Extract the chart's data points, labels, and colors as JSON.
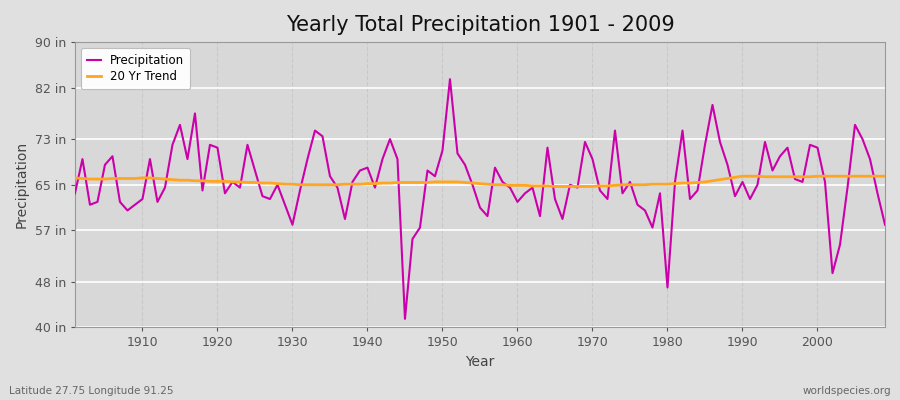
{
  "title": "Yearly Total Precipitation 1901 - 2009",
  "xlabel": "Year",
  "ylabel": "Precipitation",
  "bottom_left_label": "Latitude 27.75 Longitude 91.25",
  "bottom_right_label": "worldspecies.org",
  "years": [
    1901,
    1902,
    1903,
    1904,
    1905,
    1906,
    1907,
    1908,
    1909,
    1910,
    1911,
    1912,
    1913,
    1914,
    1915,
    1916,
    1917,
    1918,
    1919,
    1920,
    1921,
    1922,
    1923,
    1924,
    1925,
    1926,
    1927,
    1928,
    1929,
    1930,
    1931,
    1932,
    1933,
    1934,
    1935,
    1936,
    1937,
    1938,
    1939,
    1940,
    1941,
    1942,
    1943,
    1944,
    1945,
    1946,
    1947,
    1948,
    1949,
    1950,
    1951,
    1952,
    1953,
    1954,
    1955,
    1956,
    1957,
    1958,
    1959,
    1960,
    1961,
    1962,
    1963,
    1964,
    1965,
    1966,
    1967,
    1968,
    1969,
    1970,
    1971,
    1972,
    1973,
    1974,
    1975,
    1976,
    1977,
    1978,
    1979,
    1980,
    1981,
    1982,
    1983,
    1984,
    1985,
    1986,
    1987,
    1988,
    1989,
    1990,
    1991,
    1992,
    1993,
    1994,
    1995,
    1996,
    1997,
    1998,
    1999,
    2000,
    2001,
    2002,
    2003,
    2004,
    2005,
    2006,
    2007,
    2008,
    2009
  ],
  "precipitation": [
    63.5,
    69.5,
    61.5,
    62.0,
    68.5,
    70.0,
    62.0,
    60.5,
    61.5,
    62.5,
    69.5,
    62.0,
    64.5,
    72.0,
    75.5,
    69.5,
    77.5,
    64.0,
    72.0,
    71.5,
    63.5,
    65.5,
    64.5,
    72.0,
    67.5,
    63.0,
    62.5,
    65.0,
    61.5,
    58.0,
    64.0,
    69.5,
    74.5,
    73.5,
    66.5,
    64.5,
    59.0,
    65.5,
    67.5,
    68.0,
    64.5,
    69.5,
    73.0,
    69.5,
    41.5,
    55.5,
    57.5,
    67.5,
    66.5,
    71.0,
    83.5,
    70.5,
    68.5,
    65.0,
    61.0,
    59.5,
    68.0,
    65.5,
    64.5,
    62.0,
    63.5,
    64.5,
    59.5,
    71.5,
    62.5,
    59.0,
    65.0,
    64.5,
    72.5,
    69.5,
    64.0,
    62.5,
    74.5,
    63.5,
    65.5,
    61.5,
    60.5,
    57.5,
    63.5,
    47.0,
    65.5,
    74.5,
    62.5,
    64.0,
    72.0,
    79.0,
    72.5,
    68.5,
    63.0,
    65.5,
    62.5,
    65.0,
    72.5,
    67.5,
    70.0,
    71.5,
    66.0,
    65.5,
    72.0,
    71.5,
    65.5,
    49.5,
    54.5,
    64.5,
    75.5,
    73.0,
    69.5,
    63.5,
    58.0
  ],
  "trend": [
    66.2,
    66.1,
    66.0,
    66.0,
    66.0,
    66.1,
    66.1,
    66.1,
    66.1,
    66.2,
    66.2,
    66.1,
    66.0,
    65.9,
    65.8,
    65.8,
    65.7,
    65.7,
    65.6,
    65.6,
    65.6,
    65.5,
    65.5,
    65.4,
    65.4,
    65.3,
    65.3,
    65.2,
    65.1,
    65.1,
    65.0,
    65.0,
    65.0,
    65.0,
    65.0,
    65.0,
    65.1,
    65.1,
    65.1,
    65.2,
    65.2,
    65.3,
    65.3,
    65.4,
    65.4,
    65.4,
    65.4,
    65.4,
    65.5,
    65.5,
    65.5,
    65.5,
    65.4,
    65.3,
    65.2,
    65.1,
    65.0,
    65.0,
    64.9,
    64.9,
    64.9,
    64.8,
    64.8,
    64.8,
    64.7,
    64.7,
    64.7,
    64.7,
    64.7,
    64.7,
    64.8,
    64.8,
    64.9,
    65.0,
    65.0,
    65.0,
    65.0,
    65.1,
    65.1,
    65.1,
    65.2,
    65.3,
    65.3,
    65.4,
    65.5,
    65.7,
    65.9,
    66.1,
    66.3,
    66.5,
    66.5,
    66.5,
    66.4,
    66.4,
    66.4,
    66.4,
    66.4,
    66.4,
    66.4,
    66.5,
    66.5,
    66.5,
    66.5,
    66.5,
    66.5,
    66.5,
    66.5,
    66.5,
    66.5
  ],
  "precip_color": "#CC00AA",
  "trend_color": "#FFA520",
  "fig_bg_color": "#E0E0E0",
  "plot_bg_color": "#D8D8D8",
  "grid_h_color": "#FFFFFF",
  "grid_v_color": "#C8C8C8",
  "ylim": [
    40,
    90
  ],
  "yticks": [
    40,
    48,
    57,
    65,
    73,
    82,
    90
  ],
  "ytick_labels": [
    "40 in",
    "48 in",
    "57 in",
    "65 in",
    "73 in",
    "82 in",
    "90 in"
  ],
  "xlim": [
    1901,
    2009
  ],
  "xtick_years": [
    1910,
    1920,
    1930,
    1940,
    1950,
    1960,
    1970,
    1980,
    1990,
    2000
  ],
  "title_fontsize": 15,
  "axis_label_fontsize": 10,
  "tick_fontsize": 9,
  "precip_linewidth": 1.5,
  "trend_linewidth": 2.0
}
